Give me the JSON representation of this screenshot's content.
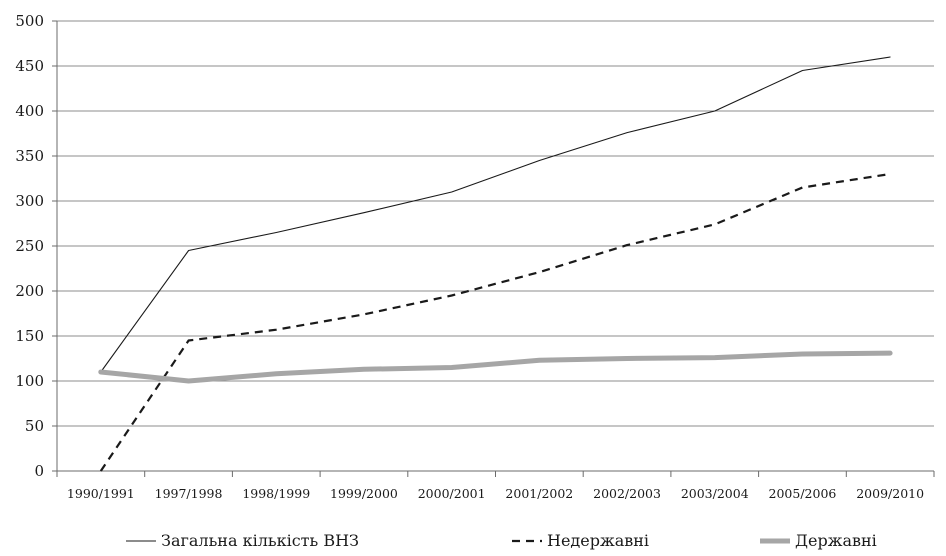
{
  "chart_data": {
    "type": "line",
    "categories": [
      "1990/1991",
      "1997/1998",
      "1998/1999",
      "1999/2000",
      "2000/2001",
      "2001/2002",
      "2002/2003",
      "2003/2004",
      "2005/2006",
      "2009/2010"
    ],
    "ylim": [
      0,
      500
    ],
    "yticks": [
      0,
      50,
      100,
      150,
      200,
      250,
      300,
      350,
      400,
      450,
      500
    ],
    "grid": true,
    "legend_position": "bottom",
    "series": [
      {
        "name": "Загальна кількість ВНЗ",
        "style": "thin-solid",
        "color": "#1a1a1a",
        "values": [
          110,
          245,
          265,
          287,
          310,
          345,
          376,
          400,
          445,
          460
        ]
      },
      {
        "name": "Недержавні",
        "style": "dashed",
        "color": "#1a1a1a",
        "values": [
          0,
          145,
          157,
          174,
          195,
          221,
          251,
          274,
          315,
          330
        ]
      },
      {
        "name": "Державні",
        "style": "thick-solid",
        "color": "#a6a6a6",
        "values": [
          110,
          100,
          108,
          113,
          115,
          123,
          125,
          126,
          130,
          131
        ]
      }
    ]
  }
}
